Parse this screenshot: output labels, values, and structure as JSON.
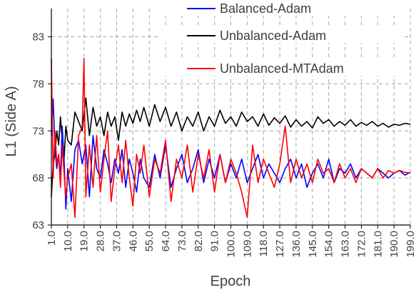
{
  "chart_data": {
    "type": "line",
    "xlabel": "Epoch",
    "ylabel": "L1 (Side A)",
    "ylim": [
      63,
      86
    ],
    "yticks": [
      63,
      68,
      73,
      78,
      83
    ],
    "xlim": [
      1,
      199
    ],
    "xticks": [
      "1.0",
      "10.0",
      "19.0",
      "28.0",
      "37.0",
      "46.0",
      "55.0",
      "64.0",
      "73.0",
      "82.0",
      "91.0",
      "100.0",
      "109.0",
      "118.0",
      "127.0",
      "136.0",
      "145.0",
      "154.0",
      "163.0",
      "172.0",
      "181.0",
      "190.0",
      "199.0"
    ],
    "grid": "dashed",
    "legend_position": "top-right",
    "series": [
      {
        "name": "Balanced-Adam",
        "color": "#0000ff",
        "x": [
          1,
          2,
          3,
          4,
          5,
          6,
          7,
          8,
          9,
          10,
          12,
          14,
          16,
          18,
          20,
          22,
          24,
          26,
          28,
          30,
          32,
          34,
          36,
          38,
          40,
          42,
          44,
          46,
          48,
          50,
          52,
          55,
          58,
          61,
          64,
          67,
          70,
          73,
          76,
          79,
          82,
          85,
          88,
          91,
          94,
          97,
          100,
          103,
          106,
          109,
          112,
          115,
          118,
          121,
          124,
          127,
          130,
          133,
          136,
          139,
          142,
          145,
          148,
          151,
          154,
          157,
          160,
          163,
          166,
          169,
          172,
          175,
          178,
          181,
          184,
          187,
          190,
          193,
          196,
          199
        ],
        "values": [
          72.5,
          76.4,
          71.0,
          69.0,
          70.5,
          68.0,
          73.5,
          70.0,
          64.7,
          69.0,
          65.5,
          71.0,
          72.0,
          69.5,
          71.5,
          66.0,
          72.5,
          69.0,
          68.0,
          71.0,
          69.5,
          67.5,
          70.0,
          68.5,
          71.0,
          67.0,
          70.0,
          68.5,
          66.5,
          70.0,
          68.0,
          67.0,
          70.5,
          68.0,
          71.5,
          67.0,
          69.0,
          70.5,
          67.5,
          69.0,
          71.0,
          67.5,
          70.0,
          68.0,
          70.5,
          67.5,
          69.5,
          68.0,
          70.0,
          67.5,
          69.0,
          70.5,
          68.0,
          69.5,
          68.5,
          67.5,
          69.0,
          70.0,
          68.0,
          69.5,
          67.0,
          68.5,
          69.5,
          68.0,
          70.0,
          67.5,
          69.0,
          68.5,
          69.5,
          68.0,
          69.0,
          68.5,
          68.0,
          69.0,
          68.5,
          68.0,
          68.5,
          68.8,
          68.3,
          68.6
        ]
      },
      {
        "name": "Unbalanced-Adam",
        "color": "#000000",
        "x": [
          1,
          2,
          3,
          4,
          5,
          6,
          7,
          8,
          9,
          10,
          12,
          14,
          16,
          18,
          20,
          22,
          24,
          26,
          28,
          30,
          32,
          34,
          36,
          38,
          40,
          42,
          44,
          46,
          48,
          50,
          52,
          55,
          58,
          61,
          64,
          67,
          70,
          73,
          76,
          79,
          82,
          85,
          88,
          91,
          94,
          97,
          100,
          103,
          106,
          109,
          112,
          115,
          118,
          121,
          124,
          127,
          130,
          133,
          136,
          139,
          142,
          145,
          148,
          151,
          154,
          157,
          160,
          163,
          166,
          169,
          172,
          175,
          178,
          181,
          184,
          187,
          190,
          193,
          196,
          199
        ],
        "values": [
          66.0,
          69.5,
          70.5,
          73.0,
          71.5,
          74.5,
          72.0,
          70.0,
          73.5,
          72.0,
          71.5,
          75.0,
          74.0,
          73.0,
          76.5,
          72.5,
          75.5,
          73.5,
          74.5,
          72.5,
          75.0,
          73.5,
          74.5,
          72.0,
          75.0,
          73.5,
          74.8,
          73.8,
          75.2,
          74.0,
          75.5,
          73.5,
          75.8,
          74.0,
          75.5,
          73.5,
          75.0,
          73.0,
          74.5,
          73.5,
          75.0,
          73.0,
          74.5,
          73.5,
          75.2,
          73.8,
          74.5,
          73.5,
          75.0,
          74.0,
          74.5,
          73.5,
          74.8,
          73.6,
          74.4,
          73.8,
          74.6,
          73.4,
          74.2,
          73.5,
          74.0,
          73.3,
          74.5,
          73.8,
          74.2,
          73.5,
          74.0,
          73.6,
          74.2,
          73.5,
          73.9,
          73.6,
          74.0,
          73.5,
          73.8,
          73.4,
          73.7,
          73.6,
          73.8,
          73.7
        ]
      },
      {
        "name": "Unbalanced-MTAdam",
        "color": "#ff0000",
        "x": [
          1,
          2,
          3,
          4,
          5,
          6,
          7,
          8,
          9,
          10,
          12,
          14,
          16,
          18,
          19,
          20,
          22,
          24,
          26,
          28,
          30,
          32,
          34,
          36,
          38,
          40,
          42,
          44,
          46,
          48,
          50,
          52,
          55,
          58,
          61,
          64,
          67,
          70,
          73,
          76,
          79,
          82,
          85,
          88,
          91,
          94,
          97,
          100,
          103,
          106,
          109,
          112,
          115,
          118,
          121,
          124,
          127,
          130,
          133,
          136,
          139,
          142,
          145,
          148,
          151,
          154,
          157,
          160,
          163,
          166,
          169,
          172,
          175,
          178,
          181,
          184,
          187,
          190,
          193,
          196,
          199
        ],
        "values": [
          80.7,
          68.0,
          73.0,
          69.5,
          70.5,
          67.0,
          71.5,
          68.5,
          66.0,
          68.0,
          69.5,
          63.8,
          72.5,
          73.5,
          80.7,
          66.0,
          71.5,
          67.0,
          72.5,
          66.5,
          70.0,
          73.0,
          65.5,
          69.0,
          71.5,
          67.5,
          72.0,
          68.0,
          65.0,
          70.5,
          68.5,
          71.5,
          66.0,
          70.0,
          68.5,
          72.0,
          65.5,
          70.0,
          68.0,
          71.5,
          66.5,
          70.5,
          68.0,
          71.0,
          66.5,
          70.5,
          67.5,
          70.0,
          68.5,
          66.5,
          63.8,
          71.5,
          67.5,
          70.0,
          68.5,
          67.0,
          69.5,
          73.5,
          67.5,
          70.0,
          68.0,
          69.5,
          67.5,
          70.0,
          68.5,
          69.0,
          67.5,
          69.5,
          68.0,
          69.0,
          67.5,
          69.0,
          68.5,
          68.0,
          69.0,
          68.0,
          68.8,
          68.5,
          68.8,
          68.6,
          68.5
        ]
      }
    ]
  }
}
